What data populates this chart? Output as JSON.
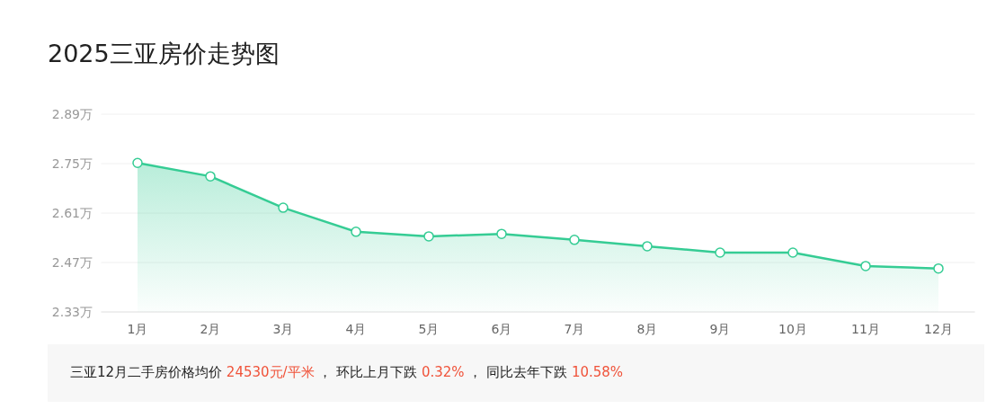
{
  "chart_data": {
    "type": "area",
    "title": "2025三亚房价走势图",
    "categories": [
      "1月",
      "2月",
      "3月",
      "4月",
      "5月",
      "6月",
      "7月",
      "8月",
      "9月",
      "10月",
      "11月",
      "12月"
    ],
    "series": [
      {
        "color": "#35cc94",
        "values": [
          2.752,
          2.714,
          2.625,
          2.557,
          2.544,
          2.551,
          2.534,
          2.516,
          2.498,
          2.498,
          2.46,
          2.453
        ]
      }
    ],
    "ylim": [
      2.33,
      2.89
    ],
    "yticks": [
      {
        "value": 2.33,
        "label": "2.33万"
      },
      {
        "value": 2.47,
        "label": "2.47万"
      },
      {
        "value": 2.61,
        "label": "2.61万"
      },
      {
        "value": 2.75,
        "label": "2.75万"
      },
      {
        "value": 2.89,
        "label": "2.89万"
      }
    ],
    "grid": "y",
    "marker": "circle",
    "annotations": [
      "三亚12月二手房价格均价 ",
      "24530元/平米",
      " ， 环比上月下跌 ",
      "0.32%",
      " ， 同比去年下跌 ",
      "10.58%"
    ]
  }
}
